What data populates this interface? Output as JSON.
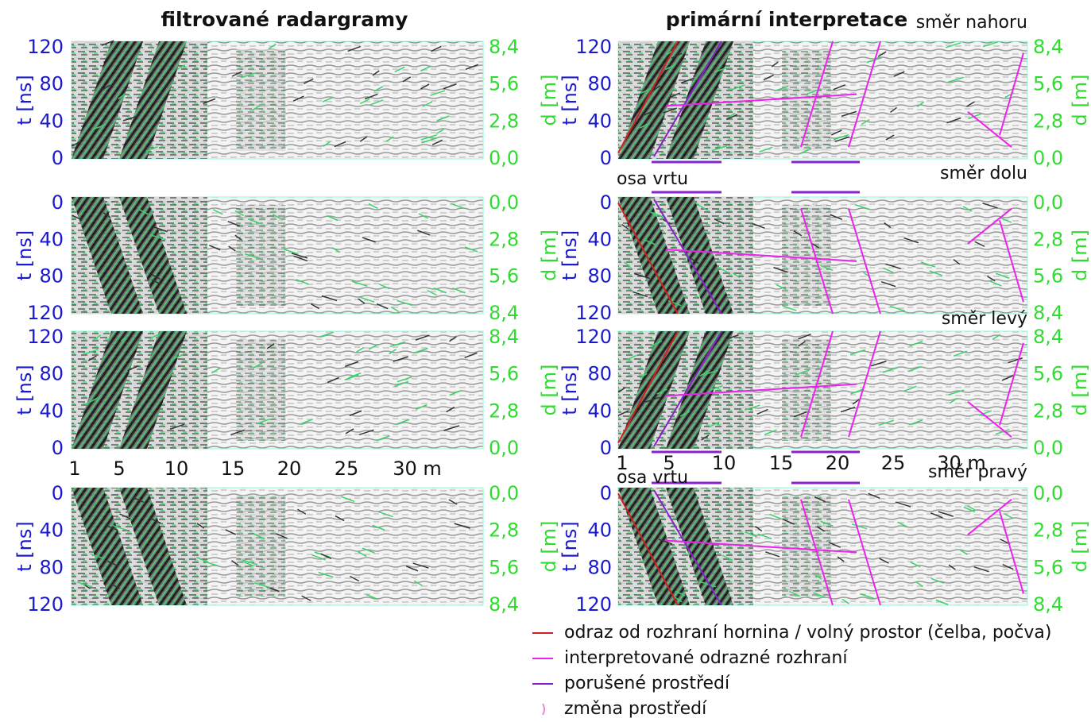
{
  "left_column": {
    "title": "filtrované radargramy",
    "panels": [
      {
        "y_label": "t [ns]",
        "y_ticks": [
          "120",
          "80",
          "40",
          "0"
        ],
        "d_label": "d [m]",
        "d_ticks": [
          "8,4",
          "5,6",
          "2,8",
          "0,0"
        ]
      },
      {
        "y_label": "t [ns]",
        "y_ticks": [
          "0",
          "40",
          "80",
          "120"
        ],
        "d_label": "d [m]",
        "d_ticks": [
          "0,0",
          "2,8",
          "5,6",
          "8,4"
        ]
      },
      {
        "y_label": "t [ns]",
        "y_ticks": [
          "120",
          "80",
          "40",
          "0"
        ],
        "d_label": "d [m]",
        "d_ticks": [
          "8,4",
          "5,6",
          "2,8",
          "0,0"
        ]
      },
      {
        "y_label": "t [ns]",
        "y_ticks": [
          "0",
          "40",
          "80",
          "120"
        ],
        "d_label": "d [m]",
        "d_ticks": [
          "0,0",
          "2,8",
          "5,6",
          "8,4"
        ]
      }
    ],
    "x_ticks": [
      "1",
      "5",
      "10",
      "15",
      "20",
      "25",
      "30 m"
    ]
  },
  "right_column": {
    "title": "primární interpretace",
    "panels": [
      {
        "direction": "směr nahoru",
        "y_label": "t [ns]",
        "y_ticks": [
          "120",
          "80",
          "40",
          "0"
        ],
        "d_label": "d [m]",
        "d_ticks": [
          "8,4",
          "5,6",
          "2,8",
          "0,0"
        ]
      },
      {
        "direction": "směr dolu",
        "y_label": "t [ns]",
        "y_ticks": [
          "0",
          "40",
          "80",
          "120"
        ],
        "d_label": "d [m]",
        "d_ticks": [
          "0,0",
          "2,8",
          "5,6",
          "8,4"
        ]
      },
      {
        "direction": "směr levý",
        "y_label": "t [ns]",
        "y_ticks": [
          "120",
          "80",
          "40",
          "0"
        ],
        "d_label": "d [m]",
        "d_ticks": [
          "8,4",
          "5,6",
          "2,8",
          "0,0"
        ]
      },
      {
        "direction": "směr pravý",
        "y_label": "t [ns]",
        "y_ticks": [
          "0",
          "40",
          "80",
          "120"
        ],
        "d_label": "d [m]",
        "d_ticks": [
          "0,0",
          "2,8",
          "5,6",
          "8,4"
        ]
      }
    ],
    "x_ticks": [
      "1",
      "5",
      "10",
      "15",
      "20",
      "25",
      "30 m"
    ],
    "borehole_labels": [
      "osa vrtu",
      "osa vrtu"
    ]
  },
  "legend": [
    "odraz od rozhraní hornina / volný prostor (čelba, počva)",
    "interpretované odrazné rozhraní",
    "porušené prostředí",
    "změna prostředí"
  ]
}
